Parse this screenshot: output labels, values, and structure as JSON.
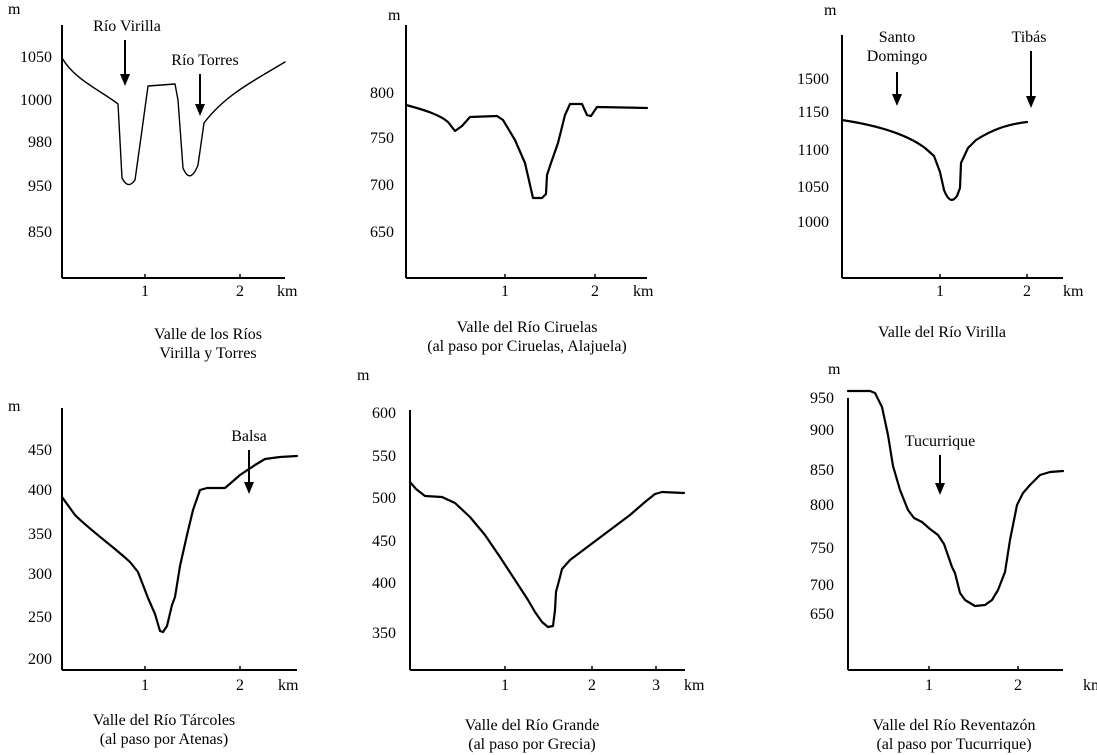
{
  "chart_data": [
    {
      "type": "line",
      "title": "Valle de los Ríos Virilla y Torres",
      "title_lines": [
        "Valle de los Ríos",
        "Virilla y Torres"
      ],
      "ylabel": "m",
      "xlabel": "km",
      "yticks": [
        "1050",
        "1000",
        "980",
        "950",
        "850"
      ],
      "xticks": [
        "1",
        "2"
      ],
      "annotations": [
        {
          "text_lines": [
            "Río Virilla"
          ]
        },
        {
          "text_lines": [
            "Río Torres"
          ]
        }
      ]
    },
    {
      "type": "line",
      "title": "Valle del Río Ciruelas (al paso por Ciruelas, Alajuela)",
      "title_lines": [
        "Valle del Río Ciruelas",
        "(al paso por Ciruelas,  Alajuela)"
      ],
      "ylabel": "m",
      "xlabel": "km",
      "yticks": [
        "800",
        "750",
        "700",
        "650"
      ],
      "xticks": [
        "1",
        "2"
      ],
      "annotations": []
    },
    {
      "type": "line",
      "title": "Valle del Río Virilla",
      "title_lines": [
        "Valle del Río Virilla"
      ],
      "ylabel": "m",
      "xlabel": "km",
      "yticks": [
        "1500",
        "1150",
        "1100",
        "1050",
        "1000"
      ],
      "xticks": [
        "1",
        "2"
      ],
      "annotations": [
        {
          "text_lines": [
            "Santo",
            "Domingo"
          ]
        },
        {
          "text_lines": [
            "Tibás"
          ]
        }
      ]
    },
    {
      "type": "line",
      "title": "Valle del Río Tárcoles (al paso por Atenas)",
      "title_lines": [
        "Valle del Río Tárcoles",
        "(al paso por Atenas)"
      ],
      "ylabel": "m",
      "xlabel": "km",
      "yticks": [
        "450",
        "400",
        "350",
        "300",
        "250",
        "200"
      ],
      "xticks": [
        "1",
        "2"
      ],
      "annotations": [
        {
          "text_lines": [
            "Balsa"
          ]
        }
      ]
    },
    {
      "type": "line",
      "title": "Valle del Río Grande (al paso por Grecia)",
      "title_lines": [
        "Valle del Río Grande",
        "(al paso por Grecia)"
      ],
      "ylabel": "m",
      "xlabel": "km",
      "yticks": [
        "600",
        "550",
        "500",
        "450",
        "400",
        "350"
      ],
      "xticks": [
        "1",
        "2",
        "3"
      ],
      "annotations": []
    },
    {
      "type": "line",
      "title": "Valle del Río Reventazón (al paso por Tucurrique)",
      "title_lines": [
        "Valle del Río Reventazón",
        "(al paso por Tucurrique)"
      ],
      "ylabel": "m",
      "xlabel": "km",
      "yticks": [
        "950",
        "900",
        "850",
        "800",
        "750",
        "700",
        "650"
      ],
      "xticks": [
        "1",
        "2"
      ],
      "annotations": [
        {
          "text_lines": [
            "Tucurrique"
          ]
        }
      ]
    }
  ]
}
